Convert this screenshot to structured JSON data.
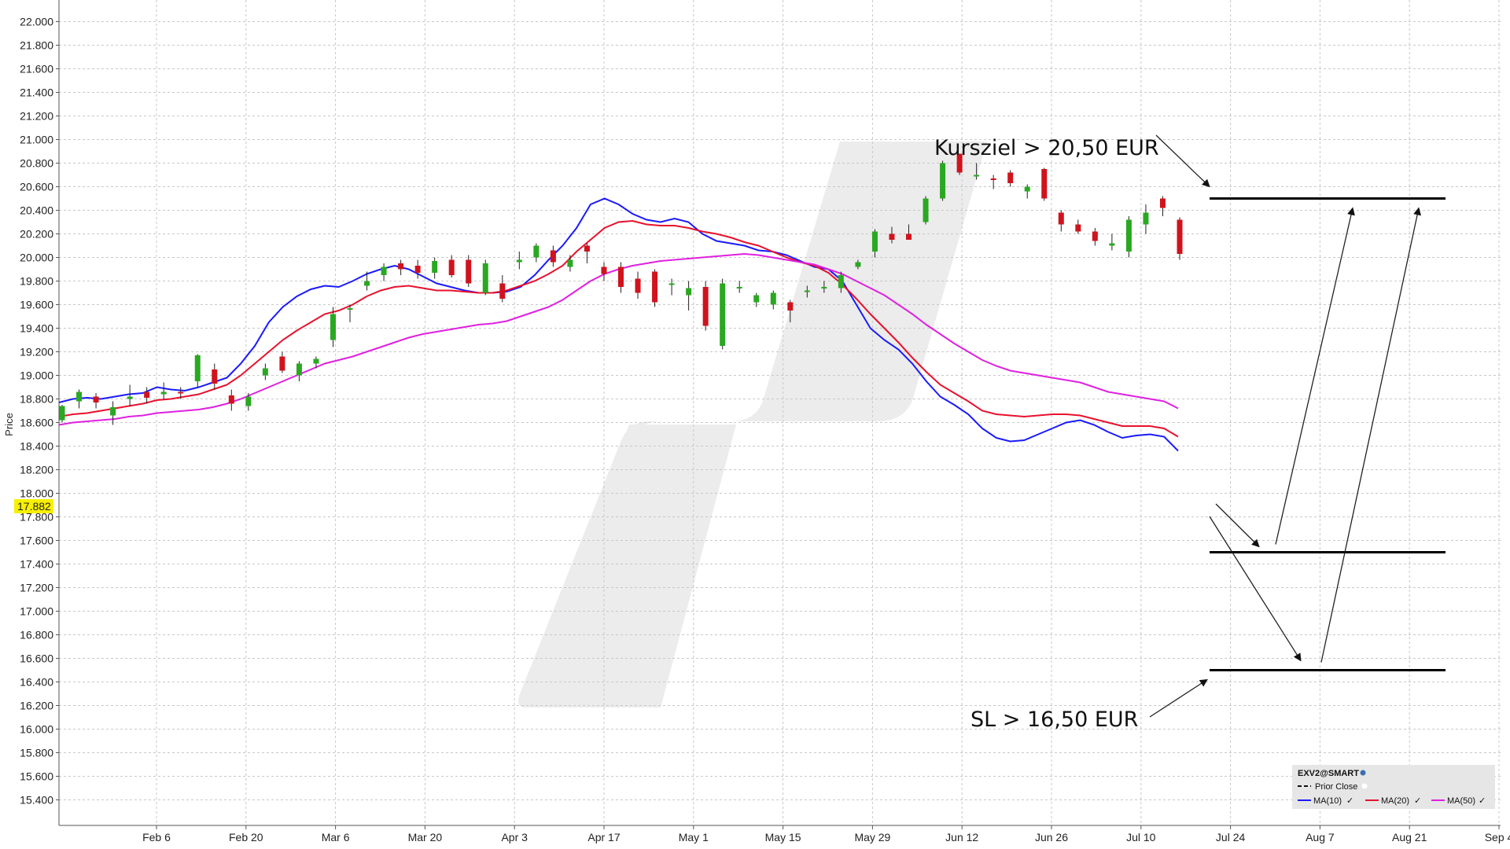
{
  "chart_data": {
    "type": "candlestick",
    "ylabel": "Price",
    "ylim": [
      15.2,
      22.2
    ],
    "yticks": [
      "22.000",
      "21.800",
      "21.600",
      "21.400",
      "21.200",
      "21.000",
      "20.800",
      "20.600",
      "20.400",
      "20.200",
      "20.000",
      "19.800",
      "19.600",
      "19.400",
      "19.200",
      "19.000",
      "18.800",
      "18.600",
      "18.400",
      "18.200",
      "18.000",
      "17.800",
      "17.600",
      "17.400",
      "17.200",
      "17.000",
      "16.800",
      "16.600",
      "16.400",
      "16.200",
      "16.000",
      "15.800",
      "15.600",
      "15.400"
    ],
    "xticks": [
      "Feb 6",
      "Feb 20",
      "Mar 6",
      "Mar 20",
      "Apr 3",
      "Apr 17",
      "May 1",
      "May 15",
      "May 29",
      "Jun 12",
      "Jun 26",
      "Jul 10",
      "Jul 24",
      "Aug 7",
      "Aug 21",
      "Sep 4"
    ],
    "last_price": "17.882",
    "grid": true,
    "series": [
      {
        "name": "MA(10)",
        "color": "#1a1aff",
        "values": [
          18.77,
          18.8,
          18.81,
          18.8,
          18.82,
          18.84,
          18.85,
          18.9,
          18.88,
          18.87,
          18.9,
          18.94,
          18.98,
          19.1,
          19.25,
          19.45,
          19.58,
          19.67,
          19.73,
          19.76,
          19.75,
          19.8,
          19.86,
          19.9,
          19.93,
          19.9,
          19.84,
          19.78,
          19.75,
          19.72,
          19.7,
          19.7,
          19.71,
          19.75,
          19.85,
          19.98,
          20.1,
          20.25,
          20.45,
          20.5,
          20.45,
          20.37,
          20.32,
          20.3,
          20.33,
          20.3,
          20.2,
          20.14,
          20.12,
          20.1,
          20.06,
          20.05,
          20.02,
          19.97,
          19.92,
          19.9,
          19.8,
          19.6,
          19.4,
          19.3,
          19.22,
          19.1,
          18.95,
          18.82,
          18.75,
          18.67,
          18.55,
          18.47,
          18.44,
          18.45,
          18.5,
          18.55,
          18.6,
          18.62,
          18.58,
          18.52,
          18.47,
          18.49,
          18.5,
          18.48,
          18.36
        ]
      },
      {
        "name": "MA(20)",
        "color": "#e8112d",
        "values": [
          18.65,
          18.67,
          18.68,
          18.7,
          18.72,
          18.74,
          18.76,
          18.79,
          18.8,
          18.82,
          18.84,
          18.88,
          18.92,
          19.0,
          19.1,
          19.2,
          19.3,
          19.38,
          19.45,
          19.52,
          19.55,
          19.6,
          19.67,
          19.72,
          19.75,
          19.76,
          19.74,
          19.72,
          19.72,
          19.71,
          19.7,
          19.7,
          19.72,
          19.76,
          19.8,
          19.86,
          19.93,
          20.05,
          20.15,
          20.25,
          20.3,
          20.31,
          20.28,
          20.27,
          20.27,
          20.25,
          20.22,
          20.2,
          20.17,
          20.13,
          20.1,
          20.05,
          20.0,
          19.96,
          19.93,
          19.87,
          19.77,
          19.65,
          19.52,
          19.4,
          19.28,
          19.15,
          19.03,
          18.92,
          18.85,
          18.78,
          18.7,
          18.67,
          18.66,
          18.65,
          18.66,
          18.67,
          18.67,
          18.66,
          18.63,
          18.6,
          18.57,
          18.57,
          18.57,
          18.55,
          18.48
        ]
      },
      {
        "name": "MA(50)",
        "color": "#e020e0",
        "values": [
          18.58,
          18.6,
          18.61,
          18.62,
          18.63,
          18.65,
          18.66,
          18.68,
          18.69,
          18.7,
          18.71,
          18.73,
          18.76,
          18.8,
          18.85,
          18.9,
          18.95,
          19.0,
          19.05,
          19.1,
          19.13,
          19.16,
          19.2,
          19.24,
          19.28,
          19.32,
          19.35,
          19.37,
          19.39,
          19.41,
          19.43,
          19.44,
          19.46,
          19.5,
          19.54,
          19.58,
          19.64,
          19.72,
          19.8,
          19.86,
          19.9,
          19.93,
          19.95,
          19.97,
          19.98,
          19.99,
          20.0,
          20.01,
          20.02,
          20.03,
          20.02,
          20.0,
          19.98,
          19.96,
          19.94,
          19.9,
          19.86,
          19.8,
          19.74,
          19.68,
          19.6,
          19.52,
          19.43,
          19.35,
          19.27,
          19.2,
          19.13,
          19.08,
          19.04,
          19.02,
          19.0,
          18.98,
          18.96,
          18.94,
          18.9,
          18.86,
          18.84,
          18.82,
          18.8,
          18.78,
          18.72
        ]
      }
    ],
    "candles": [
      {
        "o": 18.62,
        "h": 18.75,
        "l": 18.6,
        "c": 18.74
      },
      {
        "o": 18.78,
        "h": 18.88,
        "l": 18.72,
        "c": 18.86
      },
      {
        "o": 18.82,
        "h": 18.85,
        "l": 18.72,
        "c": 18.77
      },
      {
        "o": 18.66,
        "h": 18.78,
        "l": 18.58,
        "c": 18.73
      },
      {
        "o": 18.8,
        "h": 18.92,
        "l": 18.74,
        "c": 18.82
      },
      {
        "o": 18.86,
        "h": 18.9,
        "l": 18.76,
        "c": 18.81
      },
      {
        "o": 18.84,
        "h": 18.94,
        "l": 18.8,
        "c": 18.86
      },
      {
        "o": 18.86,
        "h": 18.9,
        "l": 18.8,
        "c": 18.85
      },
      {
        "o": 18.95,
        "h": 19.18,
        "l": 18.9,
        "c": 19.17
      },
      {
        "o": 19.05,
        "h": 19.1,
        "l": 18.88,
        "c": 18.93
      },
      {
        "o": 18.83,
        "h": 18.88,
        "l": 18.7,
        "c": 18.76
      },
      {
        "o": 18.74,
        "h": 18.85,
        "l": 18.7,
        "c": 18.82
      },
      {
        "o": 19.0,
        "h": 19.1,
        "l": 18.96,
        "c": 19.06
      },
      {
        "o": 19.16,
        "h": 19.2,
        "l": 19.02,
        "c": 19.04
      },
      {
        "o": 19.0,
        "h": 19.12,
        "l": 18.95,
        "c": 19.1
      },
      {
        "o": 19.1,
        "h": 19.16,
        "l": 19.06,
        "c": 19.14
      },
      {
        "o": 19.3,
        "h": 19.58,
        "l": 19.24,
        "c": 19.52
      },
      {
        "o": 19.57,
        "h": 19.6,
        "l": 19.45,
        "c": 19.57
      },
      {
        "o": 19.76,
        "h": 19.88,
        "l": 19.72,
        "c": 19.8
      },
      {
        "o": 19.85,
        "h": 19.95,
        "l": 19.8,
        "c": 19.92
      },
      {
        "o": 19.95,
        "h": 19.98,
        "l": 19.85,
        "c": 19.9
      },
      {
        "o": 19.93,
        "h": 19.98,
        "l": 19.82,
        "c": 19.87
      },
      {
        "o": 19.87,
        "h": 20.0,
        "l": 19.82,
        "c": 19.97
      },
      {
        "o": 19.98,
        "h": 20.02,
        "l": 19.83,
        "c": 19.85
      },
      {
        "o": 19.98,
        "h": 20.02,
        "l": 19.75,
        "c": 19.78
      },
      {
        "o": 19.7,
        "h": 19.98,
        "l": 19.68,
        "c": 19.95
      },
      {
        "o": 19.78,
        "h": 19.85,
        "l": 19.62,
        "c": 19.65
      },
      {
        "o": 19.96,
        "h": 20.05,
        "l": 19.9,
        "c": 19.98
      },
      {
        "o": 20.0,
        "h": 20.12,
        "l": 19.96,
        "c": 20.1
      },
      {
        "o": 20.06,
        "h": 20.1,
        "l": 19.92,
        "c": 19.96
      },
      {
        "o": 19.92,
        "h": 20.02,
        "l": 19.88,
        "c": 19.98
      },
      {
        "o": 20.1,
        "h": 20.12,
        "l": 19.95,
        "c": 20.05
      },
      {
        "o": 19.92,
        "h": 19.96,
        "l": 19.8,
        "c": 19.86
      },
      {
        "o": 19.92,
        "h": 19.96,
        "l": 19.7,
        "c": 19.75
      },
      {
        "o": 19.82,
        "h": 19.88,
        "l": 19.65,
        "c": 19.7
      },
      {
        "o": 19.88,
        "h": 19.9,
        "l": 19.58,
        "c": 19.62
      },
      {
        "o": 19.78,
        "h": 19.82,
        "l": 19.68,
        "c": 19.78
      },
      {
        "o": 19.68,
        "h": 19.8,
        "l": 19.55,
        "c": 19.74
      },
      {
        "o": 19.75,
        "h": 19.8,
        "l": 19.38,
        "c": 19.42
      },
      {
        "o": 19.25,
        "h": 19.82,
        "l": 19.22,
        "c": 19.78
      },
      {
        "o": 19.74,
        "h": 19.8,
        "l": 19.7,
        "c": 19.75
      },
      {
        "o": 19.62,
        "h": 19.7,
        "l": 19.58,
        "c": 19.68
      },
      {
        "o": 19.6,
        "h": 19.72,
        "l": 19.56,
        "c": 19.7
      },
      {
        "o": 19.62,
        "h": 19.64,
        "l": 19.45,
        "c": 19.55
      },
      {
        "o": 19.72,
        "h": 19.76,
        "l": 19.66,
        "c": 19.72
      },
      {
        "o": 19.75,
        "h": 19.8,
        "l": 19.7,
        "c": 19.75
      },
      {
        "o": 19.74,
        "h": 19.88,
        "l": 19.7,
        "c": 19.85
      },
      {
        "o": 19.92,
        "h": 19.98,
        "l": 19.9,
        "c": 19.96
      },
      {
        "o": 20.05,
        "h": 20.24,
        "l": 20.0,
        "c": 20.22
      },
      {
        "o": 20.2,
        "h": 20.26,
        "l": 20.12,
        "c": 20.15
      },
      {
        "o": 20.2,
        "h": 20.28,
        "l": 20.15,
        "c": 20.15
      },
      {
        "o": 20.3,
        "h": 20.52,
        "l": 20.28,
        "c": 20.5
      },
      {
        "o": 20.5,
        "h": 20.82,
        "l": 20.48,
        "c": 20.8
      },
      {
        "o": 20.88,
        "h": 20.88,
        "l": 20.7,
        "c": 20.72
      },
      {
        "o": 20.7,
        "h": 20.8,
        "l": 20.66,
        "c": 20.7
      },
      {
        "o": 20.67,
        "h": 20.7,
        "l": 20.58,
        "c": 20.66
      },
      {
        "o": 20.72,
        "h": 20.74,
        "l": 20.6,
        "c": 20.63
      },
      {
        "o": 20.56,
        "h": 20.62,
        "l": 20.5,
        "c": 20.6
      },
      {
        "o": 20.75,
        "h": 20.76,
        "l": 20.48,
        "c": 20.5
      },
      {
        "o": 20.38,
        "h": 20.4,
        "l": 20.22,
        "c": 20.28
      },
      {
        "o": 20.28,
        "h": 20.32,
        "l": 20.2,
        "c": 20.22
      },
      {
        "o": 20.22,
        "h": 20.25,
        "l": 20.1,
        "c": 20.14
      },
      {
        "o": 20.1,
        "h": 20.2,
        "l": 20.06,
        "c": 20.12
      },
      {
        "o": 20.05,
        "h": 20.35,
        "l": 20.0,
        "c": 20.32
      },
      {
        "o": 20.28,
        "h": 20.45,
        "l": 20.2,
        "c": 20.38
      },
      {
        "o": 20.5,
        "h": 20.52,
        "l": 20.35,
        "c": 20.42
      },
      {
        "o": 20.32,
        "h": 20.34,
        "l": 19.98,
        "c": 20.03
      }
    ]
  },
  "annotations": {
    "target_label": "Kursziel > 20,50 EUR",
    "stop_label": "SL > 16,50 EUR"
  },
  "levels": [
    {
      "name": "target",
      "value": 20.5
    },
    {
      "name": "entry",
      "value": 17.5
    },
    {
      "name": "stop",
      "value": 16.5
    }
  ],
  "legend": {
    "title": "EXV2@SMART",
    "prior_close": "Prior Close",
    "items": [
      "MA(10)",
      "MA(20)",
      "MA(50)"
    ]
  },
  "colors": {
    "up": "#2aa822",
    "down": "#d0131d",
    "highlight": "#f8f000",
    "watermark": "#ededed"
  }
}
